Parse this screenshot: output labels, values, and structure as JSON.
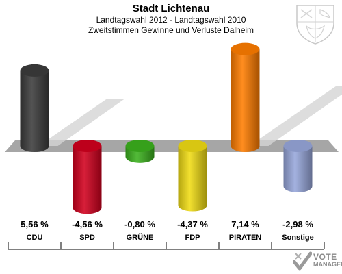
{
  "header": {
    "title": "Stadt Lichtenau",
    "subtitle1": "Landtagswahl 2012 - Landtagswahl 2010",
    "subtitle2": "Zweitstimmen Gewinne und Verluste Dalheim"
  },
  "logo": {
    "line1": "VOTE",
    "line2": "MANAGER"
  },
  "chart_data": {
    "type": "bar",
    "title": "Stadt Lichtenau",
    "subtitle": "Landtagswahl 2012 - Landtagswahl 2010 / Zweitstimmen Gewinne und Verluste Dalheim",
    "categories": [
      "CDU",
      "SPD",
      "GRÜNE",
      "FDP",
      "PIRATEN",
      "Sonstige"
    ],
    "values": [
      5.56,
      -4.56,
      -0.8,
      -4.37,
      7.14,
      -2.98
    ],
    "value_labels": [
      "5,56 %",
      "-4,56 %",
      "-0,80 %",
      "-4,37 %",
      "7,14 %",
      "-2,98 %"
    ],
    "colors": [
      "#3c3c3c",
      "#d2001e",
      "#3cb21e",
      "#f0dc14",
      "#ff7d00",
      "#98a8dc"
    ],
    "unit": "%",
    "baseline": 0,
    "grid": false,
    "legend": "none"
  }
}
